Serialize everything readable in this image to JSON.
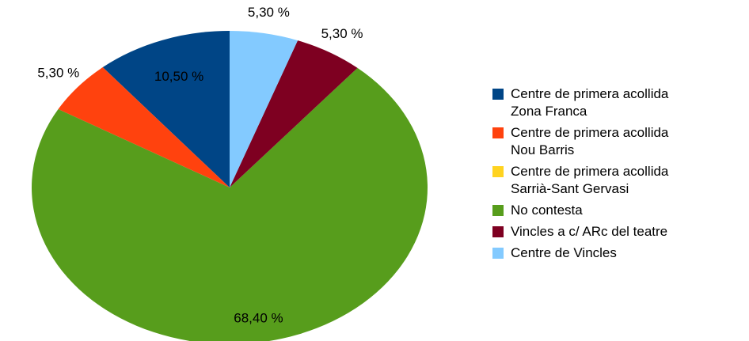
{
  "chart_data": {
    "type": "pie",
    "series": [
      {
        "name": "Centre de primera acollida\nZona Franca",
        "color": "#004586",
        "values": [
          10.5
        ],
        "value_labels": [
          "10,50 %"
        ]
      },
      {
        "name": "Centre de primera acollida\nNou Barris",
        "color": "#ff420e",
        "values": [
          5.3
        ],
        "value_labels": [
          "5,30 %"
        ]
      },
      {
        "name": "Centre de primera acollida\nSarrià-Sant Gervasi",
        "color": "#ffd320",
        "values": [
          0
        ],
        "value_labels": [
          null
        ]
      },
      {
        "name": "No contesta",
        "color": "#579d1c",
        "values": [
          68.4
        ],
        "value_labels": [
          "68,40 %"
        ]
      },
      {
        "name": "Vincles a c/ ARc del teatre",
        "color": "#7e0021",
        "values": [
          5.3
        ],
        "value_labels": [
          "5,30 %"
        ]
      },
      {
        "name": "Centre de Vincles",
        "color": "#83caff",
        "values": [
          5.3
        ],
        "value_labels": [
          "5,30 %"
        ]
      }
    ]
  }
}
